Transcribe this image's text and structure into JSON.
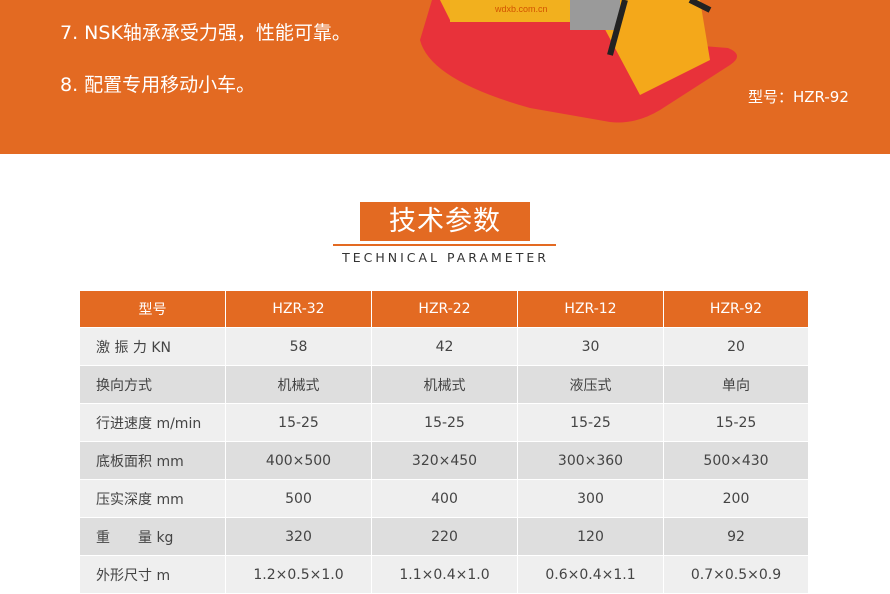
{
  "banner": {
    "features": [
      "7. NSK轴承承受力强，性能可靠。",
      "8. 配置专用移动小车。"
    ],
    "model_label": "型号：HZR-92",
    "image_logo_text": "wdxb.com.cn",
    "background": "#e36a22"
  },
  "section": {
    "title": "技术参数",
    "subtitle": "TECHNICAL PARAMETER"
  },
  "table": {
    "headers": [
      "型号",
      "HZR-32",
      "HZR-22",
      "HZR-12",
      "HZR-92"
    ],
    "rows": [
      [
        "激 振 力 KN",
        "58",
        "42",
        "30",
        "20"
      ],
      [
        "换向方式",
        "机械式",
        "机械式",
        "液压式",
        "单向"
      ],
      [
        "行进速度  m/min",
        "15-25",
        "15-25",
        "15-25",
        "15-25"
      ],
      [
        "底板面积  mm",
        "400×500",
        "320×450",
        "300×360",
        "500×430"
      ],
      [
        "压实深度  mm",
        "500",
        "400",
        "300",
        "200"
      ],
      [
        "重　　量 kg",
        "320",
        "220",
        "120",
        "92"
      ],
      [
        "外形尺寸  m",
        "1.2×0.5×1.0",
        "1.1×0.4×1.0",
        "0.6×0.4×1.1",
        "0.7×0.5×0.9"
      ]
    ]
  }
}
